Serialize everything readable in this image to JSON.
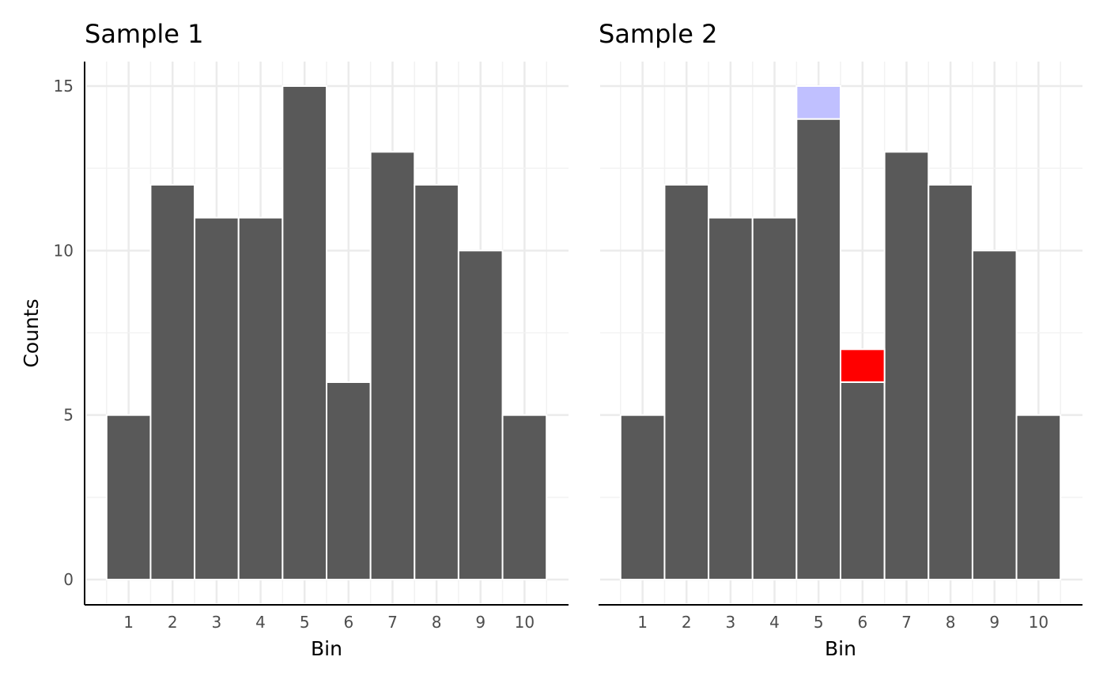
{
  "chart_data": [
    {
      "type": "bar",
      "title": "Sample 1",
      "xlabel": "Bin",
      "ylabel": "Counts",
      "categories": [
        "1",
        "2",
        "3",
        "4",
        "5",
        "6",
        "7",
        "8",
        "9",
        "10"
      ],
      "values": [
        5,
        12,
        11,
        11,
        15,
        6,
        13,
        12,
        10,
        5
      ],
      "ylim": [
        0,
        15
      ],
      "yticks": [
        "0",
        "5",
        "10",
        "15"
      ],
      "bar_color": "#595959",
      "grid": true,
      "highlights": []
    },
    {
      "type": "bar",
      "title": "Sample 2",
      "xlabel": "Bin",
      "ylabel": "",
      "categories": [
        "1",
        "2",
        "3",
        "4",
        "5",
        "6",
        "7",
        "8",
        "9",
        "10"
      ],
      "values": [
        5,
        12,
        11,
        11,
        14,
        6,
        13,
        12,
        10,
        5
      ],
      "ylim": [
        0,
        15
      ],
      "yticks": [],
      "bar_color": "#595959",
      "grid": true,
      "highlights": [
        {
          "category": "5",
          "from": 14,
          "to": 15,
          "color": "#c0c0ff"
        },
        {
          "category": "6",
          "from": 6,
          "to": 7,
          "color": "#ff0000"
        }
      ]
    }
  ]
}
